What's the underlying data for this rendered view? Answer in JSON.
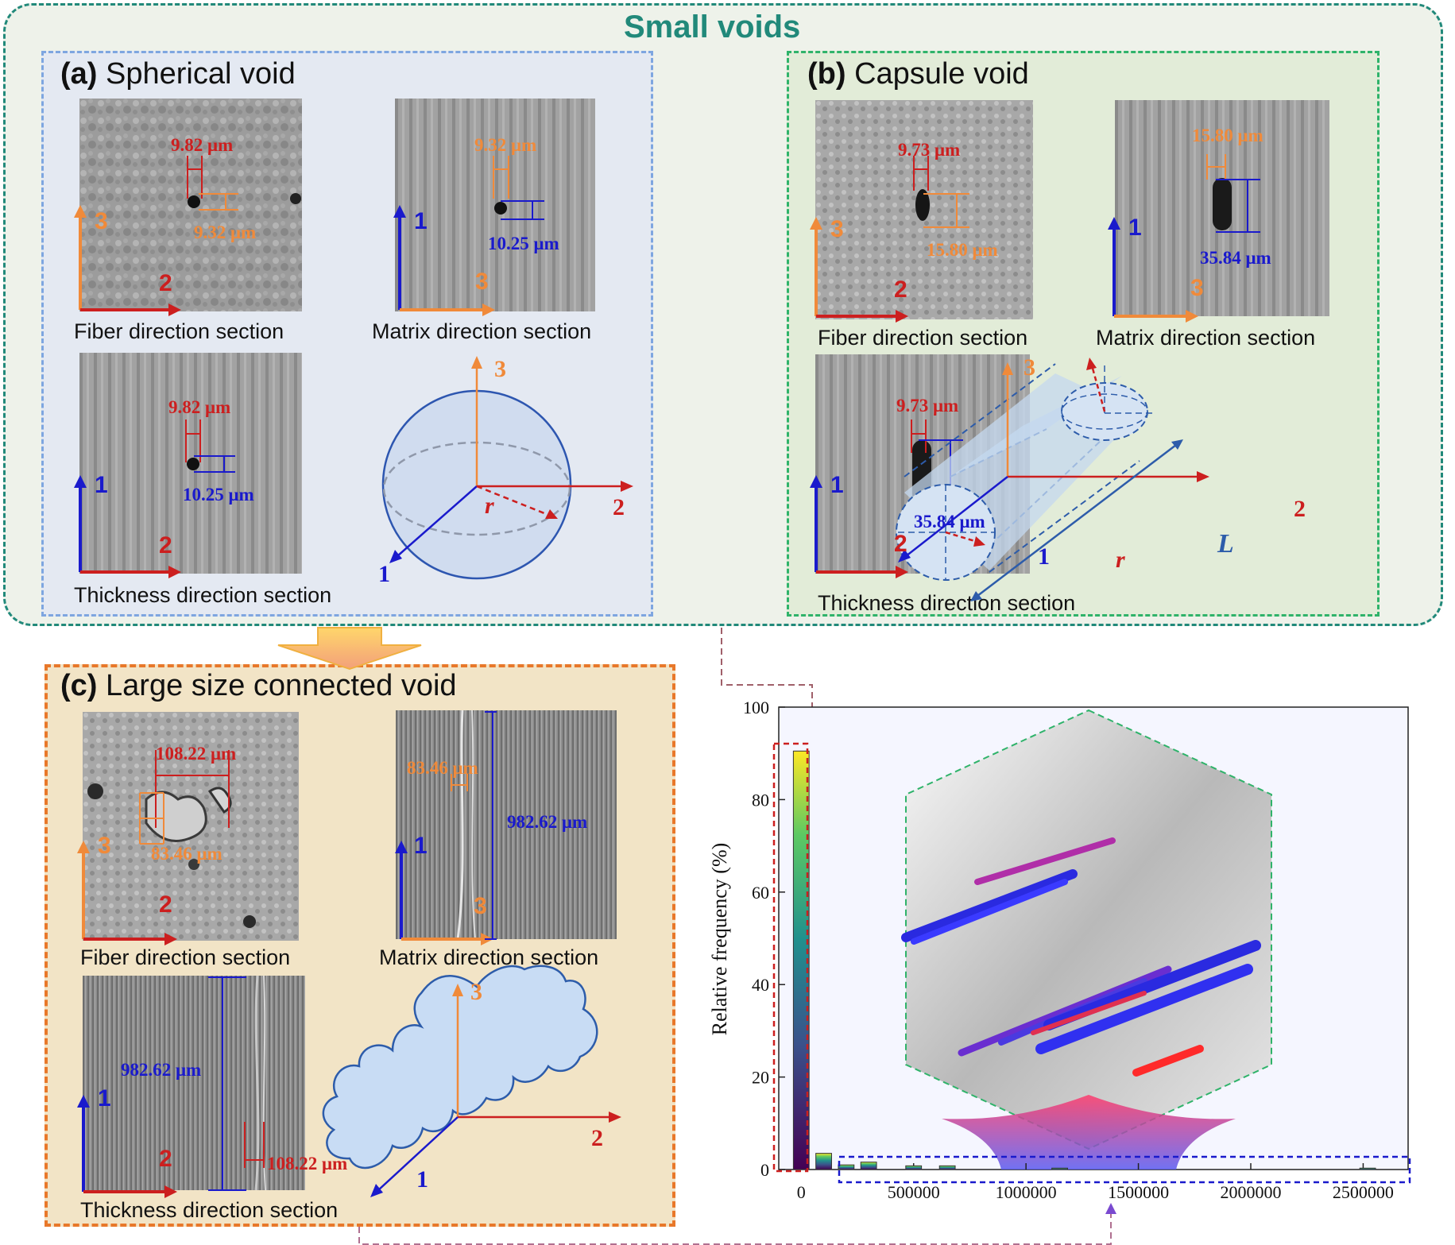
{
  "header": {
    "title": "Small voids"
  },
  "colors": {
    "teal": "#21897a",
    "red": "#cc1f1f",
    "orange": "#f08a3a",
    "blue": "#1a1acc",
    "panelA_border": "#7ea6e0",
    "panelB_border": "#2fb36a",
    "panelC_border": "#e8782a"
  },
  "panel_a": {
    "label": "(a)",
    "title": "Spherical void",
    "fiber_caption": "Fiber direction section",
    "matrix_caption": "Matrix direction section",
    "thickness_caption": "Thickness direction section",
    "fiber_m1": "9.82 μm",
    "fiber_m2": "9.32 μm",
    "matrix_m1": "9.32 μm",
    "matrix_m2": "10.25 μm",
    "thick_m1": "9.82 μm",
    "thick_m2": "10.25 μm",
    "axis_1": "1",
    "axis_2": "2",
    "axis_3": "3",
    "radius": "r"
  },
  "panel_b": {
    "label": "(b)",
    "title": "Capsule void",
    "fiber_caption": "Fiber direction section",
    "matrix_caption": "Matrix direction section",
    "thickness_caption": "Thickness direction section",
    "fiber_m1": "9.73 μm",
    "fiber_m2": "15.80 μm",
    "matrix_m1": "15.80 μm",
    "matrix_m2": "35.84 μm",
    "thick_m1": "9.73 μm",
    "thick_m2": "35.84 μm",
    "axis_1": "1",
    "axis_2": "2",
    "axis_3": "3",
    "radius": "r",
    "length": "L"
  },
  "panel_c": {
    "label": "(c)",
    "title": "Large size connected void",
    "fiber_caption": "Fiber direction section",
    "matrix_caption": "Matrix direction section",
    "thickness_caption": "Thickness direction section",
    "fiber_m1": "108.22 μm",
    "fiber_m2": "83.46 μm",
    "matrix_m1": "83.46 μm",
    "matrix_m2": "982.62 μm",
    "thick_m1": "982.62 μm",
    "thick_m2": "108.22 μm",
    "axis_1": "1",
    "axis_2": "2",
    "axis_3": "3"
  },
  "chart_data": {
    "type": "bar",
    "ylabel": "Relative frequency (%)",
    "xlabel": "",
    "ylim": [
      0,
      100
    ],
    "xlim": [
      -100000,
      2700000
    ],
    "yticks": [
      "0",
      "20",
      "40",
      "60",
      "80",
      "100"
    ],
    "xticks": [
      "0",
      "500000",
      "1000000",
      "1500000",
      "2000000",
      "2500000"
    ],
    "bin_width": 70000,
    "x": [
      0,
      100000,
      200000,
      300000,
      500000,
      650000,
      1150000,
      2520000
    ],
    "values": [
      90.5,
      3.5,
      1.0,
      1.6,
      0.8,
      0.8,
      0.3,
      0.3
    ]
  }
}
